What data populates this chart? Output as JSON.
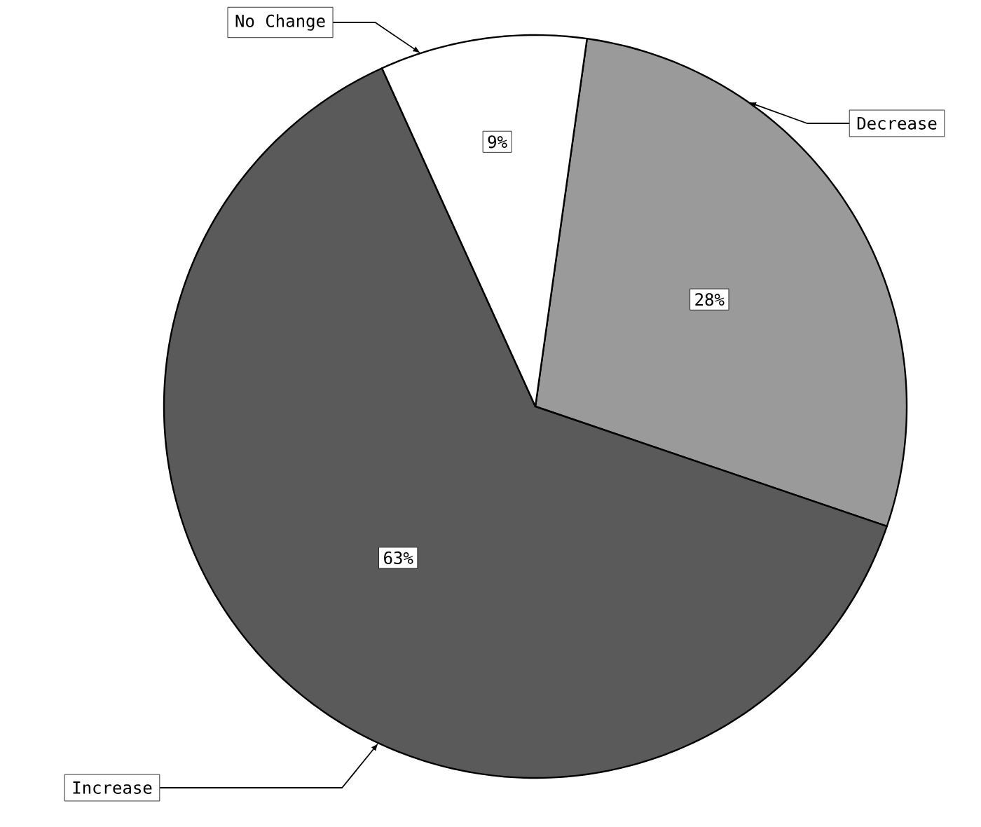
{
  "chart_data": {
    "type": "pie",
    "categories": [
      "Decrease",
      "Increase",
      "No Change"
    ],
    "values": [
      28,
      63,
      9
    ],
    "value_labels": [
      "28%",
      "63%",
      "9%"
    ],
    "colors": [
      "#9a9a9a",
      "#5a5a5a",
      "#ffffff"
    ]
  }
}
